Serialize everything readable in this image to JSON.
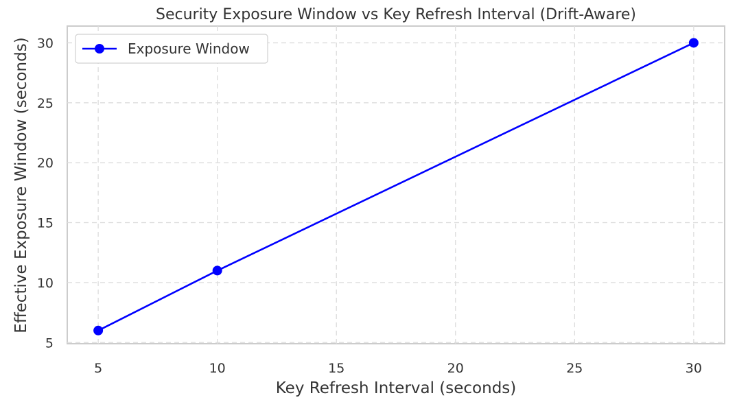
{
  "chart_data": {
    "type": "line",
    "title": "Security Exposure Window vs Key Refresh Interval (Drift-Aware)",
    "xlabel": "Key Refresh Interval (seconds)",
    "ylabel": "Effective Exposure Window (seconds)",
    "xlim": [
      3.7,
      31.3
    ],
    "ylim": [
      4.9,
      31.4
    ],
    "xticks": [
      5,
      10,
      15,
      20,
      25,
      30
    ],
    "yticks": [
      5,
      10,
      15,
      20,
      25,
      30
    ],
    "grid": true,
    "legend_position": "top-left",
    "series": [
      {
        "name": "Exposure Window",
        "color": "#0000ff",
        "marker": "circle",
        "x": [
          5,
          10,
          30
        ],
        "y": [
          6,
          11,
          30
        ]
      }
    ]
  }
}
